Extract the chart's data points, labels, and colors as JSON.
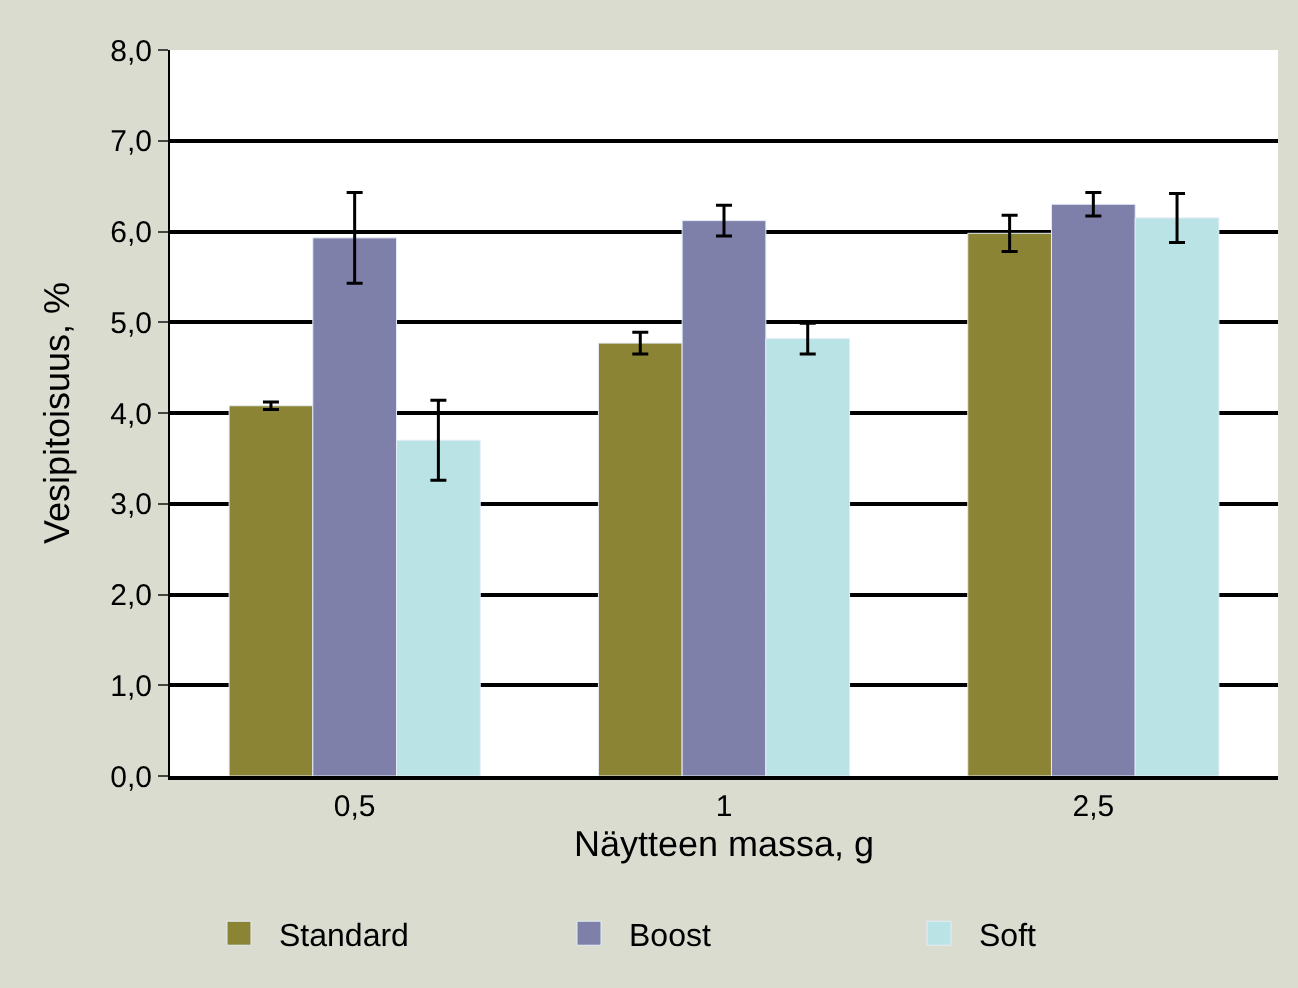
{
  "chart_data": {
    "type": "bar",
    "xlabel": "Näytteen massa, g",
    "ylabel": "Vesipitoisuus, %",
    "categories": [
      "0,5",
      "1",
      "2,5"
    ],
    "series": [
      {
        "name": "Standard",
        "color": "#8b8434",
        "values": [
          4.08,
          4.77,
          5.98
        ],
        "errors": [
          0.04,
          0.12,
          0.2
        ]
      },
      {
        "name": "Boost",
        "color": "#7f80aa",
        "values": [
          5.93,
          6.12,
          6.3
        ],
        "errors": [
          0.5,
          0.17,
          0.13
        ]
      },
      {
        "name": "Soft",
        "color": "#bae3e6",
        "values": [
          3.7,
          4.82,
          6.15
        ],
        "errors": [
          0.44,
          0.17,
          0.27
        ]
      }
    ],
    "ylim": [
      0,
      8
    ],
    "yticks": [
      {
        "value": 0,
        "label": "0,0"
      },
      {
        "value": 1,
        "label": "1,0"
      },
      {
        "value": 2,
        "label": "2,0"
      },
      {
        "value": 3,
        "label": "3,0"
      },
      {
        "value": 4,
        "label": "4,0"
      },
      {
        "value": 5,
        "label": "5,0"
      },
      {
        "value": 6,
        "label": "6,0"
      },
      {
        "value": 7,
        "label": "7,0"
      },
      {
        "value": 8,
        "label": "8,0"
      }
    ],
    "grid": "y",
    "legend": "bottom"
  }
}
